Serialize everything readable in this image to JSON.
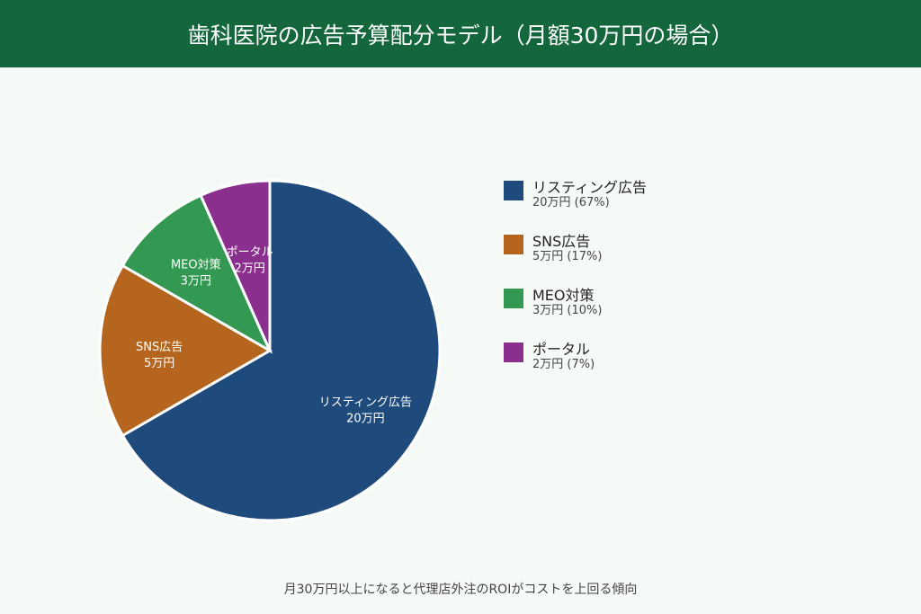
{
  "header": {
    "title": "歯科医院の広告予算配分モデル（月額30万円の場合）"
  },
  "chart_data": {
    "type": "pie",
    "unit": "万円",
    "slices": [
      {
        "name": "リスティング広告",
        "value": 20,
        "value_label": "20万円",
        "legend_value": "20万円 (67%)",
        "color": "#1f4a7c"
      },
      {
        "name": "SNS広告",
        "value": 5,
        "value_label": "5万円",
        "legend_value": "5万円 (17%)",
        "color": "#b5651d"
      },
      {
        "name": "MEO対策",
        "value": 3,
        "value_label": "3万円",
        "legend_value": "3万円 (10%)",
        "color": "#339952"
      },
      {
        "name": "ポータル",
        "value": 2,
        "value_label": "2万円",
        "legend_value": "2万円 (7%)",
        "color": "#8b2f8e"
      }
    ],
    "start_angle": "top",
    "direction": "clockwise",
    "legend_placement": "right"
  },
  "footer": {
    "note": "月30万円以上になると代理店外注のROIがコストを上回る傾向"
  }
}
